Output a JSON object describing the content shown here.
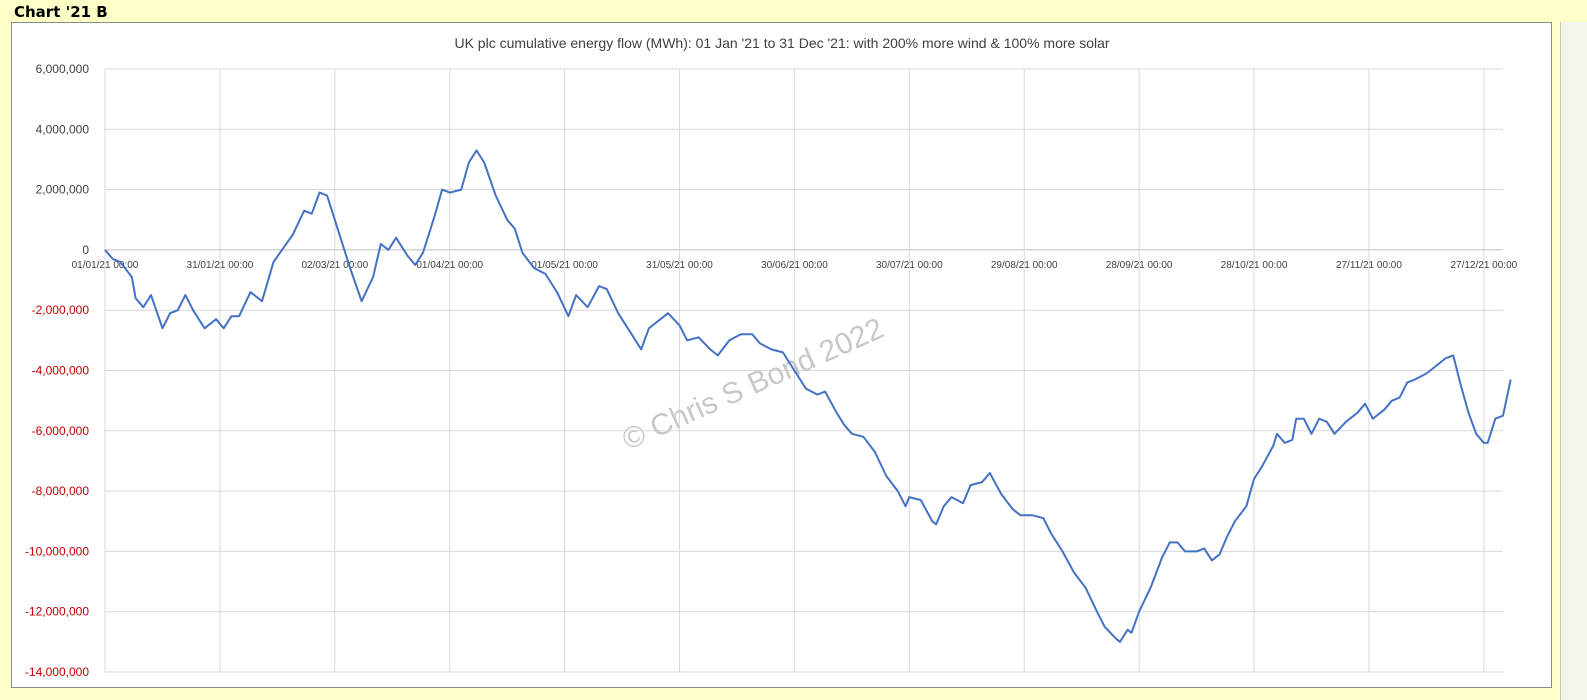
{
  "sheet": {
    "heading": "Chart '21 B"
  },
  "colors": {
    "line": "#4472C4",
    "negative_tick": "#C00000",
    "positive_tick": "#404040",
    "grid": "#D9D9D9",
    "background": "#FFFFC8"
  },
  "watermark": "© Chris S Bond  2022",
  "chart_data": {
    "type": "line",
    "title": "UK plc cumulative energy flow (MWh): 01 Jan '21 to 31 Dec '21: with 200% more wind & 100% more solar",
    "xlabel": "",
    "ylabel": "",
    "ylim": [
      -14000000,
      6000000
    ],
    "y_ticks": [
      {
        "value": 6000000,
        "label": "6,000,000"
      },
      {
        "value": 4000000,
        "label": "4,000,000"
      },
      {
        "value": 2000000,
        "label": "2,000,000"
      },
      {
        "value": 0,
        "label": "0"
      },
      {
        "value": -2000000,
        "label": "-2,000,000"
      },
      {
        "value": -4000000,
        "label": "-4,000,000"
      },
      {
        "value": -6000000,
        "label": "-6,000,000"
      },
      {
        "value": -8000000,
        "label": "-8,000,000"
      },
      {
        "value": -10000000,
        "label": "-10,000,000"
      },
      {
        "value": -12000000,
        "label": "-12,000,000"
      },
      {
        "value": -14000000,
        "label": "-14,000,000"
      }
    ],
    "xlim": [
      "2021-01-01",
      "2022-01-01"
    ],
    "x_ticks": [
      {
        "date": "2021-01-01",
        "label": "01/01/21 00:00"
      },
      {
        "date": "2021-01-31",
        "label": "31/01/21 00:00"
      },
      {
        "date": "2021-03-02",
        "label": "02/03/21 00:00"
      },
      {
        "date": "2021-04-01",
        "label": "01/04/21 00:00"
      },
      {
        "date": "2021-05-01",
        "label": "01/05/21 00:00"
      },
      {
        "date": "2021-05-31",
        "label": "31/05/21 00:00"
      },
      {
        "date": "2021-06-30",
        "label": "30/06/21 00:00"
      },
      {
        "date": "2021-07-30",
        "label": "30/07/21 00:00"
      },
      {
        "date": "2021-08-29",
        "label": "29/08/21 00:00"
      },
      {
        "date": "2021-09-28",
        "label": "28/09/21 00:00"
      },
      {
        "date": "2021-10-28",
        "label": "28/10/21 00:00"
      },
      {
        "date": "2021-11-27",
        "label": "27/11/21 00:00"
      },
      {
        "date": "2021-12-27",
        "label": "27/12/21 00:00"
      }
    ],
    "grid": true,
    "legend": "none",
    "series": [
      {
        "points": [
          [
            "2021-01-01",
            0
          ],
          [
            "2021-01-03",
            -300000
          ],
          [
            "2021-01-05",
            -400000
          ],
          [
            "2021-01-08",
            -900000
          ],
          [
            "2021-01-09",
            -1600000
          ],
          [
            "2021-01-11",
            -1900000
          ],
          [
            "2021-01-13",
            -1500000
          ],
          [
            "2021-01-16",
            -2600000
          ],
          [
            "2021-01-18",
            -2100000
          ],
          [
            "2021-01-20",
            -2000000
          ],
          [
            "2021-01-22",
            -1500000
          ],
          [
            "2021-01-24",
            -2000000
          ],
          [
            "2021-01-27",
            -2600000
          ],
          [
            "2021-01-30",
            -2300000
          ],
          [
            "2021-02-01",
            -2600000
          ],
          [
            "2021-02-03",
            -2200000
          ],
          [
            "2021-02-05",
            -2200000
          ],
          [
            "2021-02-08",
            -1400000
          ],
          [
            "2021-02-11",
            -1700000
          ],
          [
            "2021-02-14",
            -400000
          ],
          [
            "2021-02-19",
            500000
          ],
          [
            "2021-02-22",
            1300000
          ],
          [
            "2021-02-24",
            1200000
          ],
          [
            "2021-02-26",
            1900000
          ],
          [
            "2021-02-28",
            1800000
          ],
          [
            "2021-03-03",
            600000
          ],
          [
            "2021-03-06",
            -600000
          ],
          [
            "2021-03-09",
            -1700000
          ],
          [
            "2021-03-12",
            -900000
          ],
          [
            "2021-03-14",
            200000
          ],
          [
            "2021-03-16",
            0
          ],
          [
            "2021-03-18",
            400000
          ],
          [
            "2021-03-21",
            -200000
          ],
          [
            "2021-03-23",
            -500000
          ],
          [
            "2021-03-25",
            -100000
          ],
          [
            "2021-03-28",
            1100000
          ],
          [
            "2021-03-30",
            2000000
          ],
          [
            "2021-04-01",
            1900000
          ],
          [
            "2021-04-04",
            2000000
          ],
          [
            "2021-04-06",
            2900000
          ],
          [
            "2021-04-08",
            3300000
          ],
          [
            "2021-04-10",
            2900000
          ],
          [
            "2021-04-13",
            1800000
          ],
          [
            "2021-04-16",
            1000000
          ],
          [
            "2021-04-18",
            700000
          ],
          [
            "2021-04-20",
            -100000
          ],
          [
            "2021-04-23",
            -600000
          ],
          [
            "2021-04-26",
            -800000
          ],
          [
            "2021-04-29",
            -1400000
          ],
          [
            "2021-05-02",
            -2200000
          ],
          [
            "2021-05-04",
            -1500000
          ],
          [
            "2021-05-07",
            -1900000
          ],
          [
            "2021-05-10",
            -1200000
          ],
          [
            "2021-05-12",
            -1300000
          ],
          [
            "2021-05-15",
            -2100000
          ],
          [
            "2021-05-17",
            -2500000
          ],
          [
            "2021-05-19",
            -2900000
          ],
          [
            "2021-05-21",
            -3300000
          ],
          [
            "2021-05-23",
            -2600000
          ],
          [
            "2021-05-25",
            -2400000
          ],
          [
            "2021-05-28",
            -2100000
          ],
          [
            "2021-05-31",
            -2500000
          ],
          [
            "2021-06-02",
            -3000000
          ],
          [
            "2021-06-05",
            -2900000
          ],
          [
            "2021-06-08",
            -3300000
          ],
          [
            "2021-06-10",
            -3500000
          ],
          [
            "2021-06-13",
            -3000000
          ],
          [
            "2021-06-16",
            -2800000
          ],
          [
            "2021-06-19",
            -2800000
          ],
          [
            "2021-06-21",
            -3100000
          ],
          [
            "2021-06-24",
            -3300000
          ],
          [
            "2021-06-27",
            -3400000
          ],
          [
            "2021-06-30",
            -4000000
          ],
          [
            "2021-07-03",
            -4600000
          ],
          [
            "2021-07-06",
            -4800000
          ],
          [
            "2021-07-08",
            -4700000
          ],
          [
            "2021-07-11",
            -5400000
          ],
          [
            "2021-07-13",
            -5800000
          ],
          [
            "2021-07-15",
            -6100000
          ],
          [
            "2021-07-18",
            -6200000
          ],
          [
            "2021-07-21",
            -6700000
          ],
          [
            "2021-07-24",
            -7500000
          ],
          [
            "2021-07-27",
            -8000000
          ],
          [
            "2021-07-29",
            -8500000
          ],
          [
            "2021-07-30",
            -8200000
          ],
          [
            "2021-08-02",
            -8300000
          ],
          [
            "2021-08-05",
            -9000000
          ],
          [
            "2021-08-06",
            -9100000
          ],
          [
            "2021-08-08",
            -8500000
          ],
          [
            "2021-08-10",
            -8200000
          ],
          [
            "2021-08-13",
            -8400000
          ],
          [
            "2021-08-15",
            -7800000
          ],
          [
            "2021-08-18",
            -7700000
          ],
          [
            "2021-08-20",
            -7400000
          ],
          [
            "2021-08-23",
            -8100000
          ],
          [
            "2021-08-26",
            -8600000
          ],
          [
            "2021-08-28",
            -8800000
          ],
          [
            "2021-08-31",
            -8800000
          ],
          [
            "2021-09-03",
            -8900000
          ],
          [
            "2021-09-05",
            -9400000
          ],
          [
            "2021-09-08",
            -10000000
          ],
          [
            "2021-09-11",
            -10700000
          ],
          [
            "2021-09-14",
            -11200000
          ],
          [
            "2021-09-17",
            -12000000
          ],
          [
            "2021-09-19",
            -12500000
          ],
          [
            "2021-09-22",
            -12900000
          ],
          [
            "2021-09-23",
            -13000000
          ],
          [
            "2021-09-25",
            -12600000
          ],
          [
            "2021-09-26",
            -12700000
          ],
          [
            "2021-09-28",
            -12000000
          ],
          [
            "2021-10-01",
            -11200000
          ],
          [
            "2021-10-04",
            -10200000
          ],
          [
            "2021-10-06",
            -9700000
          ],
          [
            "2021-10-08",
            -9700000
          ],
          [
            "2021-10-10",
            -10000000
          ],
          [
            "2021-10-13",
            -10000000
          ],
          [
            "2021-10-15",
            -9900000
          ],
          [
            "2021-10-17",
            -10300000
          ],
          [
            "2021-10-19",
            -10100000
          ],
          [
            "2021-10-21",
            -9500000
          ],
          [
            "2021-10-23",
            -9000000
          ],
          [
            "2021-10-26",
            -8500000
          ],
          [
            "2021-10-28",
            -7600000
          ],
          [
            "2021-10-30",
            -7200000
          ],
          [
            "2021-11-02",
            -6500000
          ],
          [
            "2021-11-03",
            -6100000
          ],
          [
            "2021-11-05",
            -6400000
          ],
          [
            "2021-11-07",
            -6300000
          ],
          [
            "2021-11-08",
            -5600000
          ],
          [
            "2021-11-10",
            -5600000
          ],
          [
            "2021-11-12",
            -6100000
          ],
          [
            "2021-11-14",
            -5600000
          ],
          [
            "2021-11-16",
            -5700000
          ],
          [
            "2021-11-18",
            -6100000
          ],
          [
            "2021-11-21",
            -5700000
          ],
          [
            "2021-11-24",
            -5400000
          ],
          [
            "2021-11-26",
            -5100000
          ],
          [
            "2021-11-28",
            -5600000
          ],
          [
            "2021-12-01",
            -5300000
          ],
          [
            "2021-12-03",
            -5000000
          ],
          [
            "2021-12-05",
            -4900000
          ],
          [
            "2021-12-07",
            -4400000
          ],
          [
            "2021-12-09",
            -4300000
          ],
          [
            "2021-12-12",
            -4100000
          ],
          [
            "2021-12-14",
            -3900000
          ],
          [
            "2021-12-17",
            -3600000
          ],
          [
            "2021-12-19",
            -3500000
          ],
          [
            "2021-12-21",
            -4500000
          ],
          [
            "2021-12-23",
            -5400000
          ],
          [
            "2021-12-25",
            -6100000
          ],
          [
            "2021-12-27",
            -6400000
          ],
          [
            "2021-12-28",
            -6400000
          ],
          [
            "2021-12-30",
            -5600000
          ],
          [
            "2022-01-01",
            -5500000
          ],
          [
            "2022-01-03",
            -4300000
          ]
        ]
      }
    ]
  }
}
